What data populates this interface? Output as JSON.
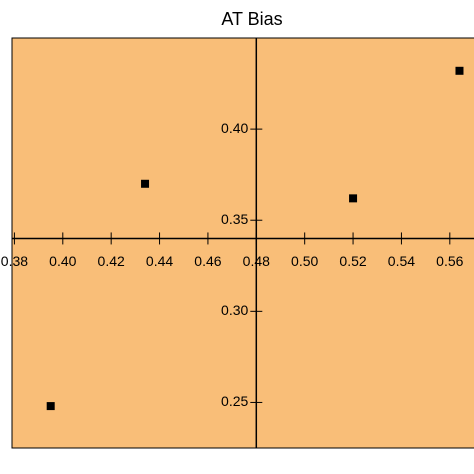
{
  "chart_data": {
    "type": "scatter",
    "title": "AT Bias",
    "x": [
      0.434,
      0.52,
      0.564,
      0.395
    ],
    "series": [
      {
        "color": "#000000",
        "values": [
          0.37,
          0.362,
          0.432,
          0.248
        ]
      }
    ],
    "xlim": [
      0.379,
      0.57
    ],
    "ylim": [
      0.225,
      0.45
    ],
    "xticks": [
      0.38,
      {
        "value": 0.4,
        "label": "0.40"
      },
      0.42,
      0.44,
      0.46,
      0.48,
      {
        "value": 0.5,
        "label": "0.50"
      },
      0.52,
      0.54,
      0.56
    ],
    "yticks": [
      0.25,
      {
        "value": 0.3,
        "label": "0.30"
      },
      0.35,
      {
        "value": 0.4,
        "label": "0.40"
      }
    ],
    "axis_cross": {
      "x": 0.48,
      "y": 0.34
    },
    "background": "#f9be78"
  }
}
